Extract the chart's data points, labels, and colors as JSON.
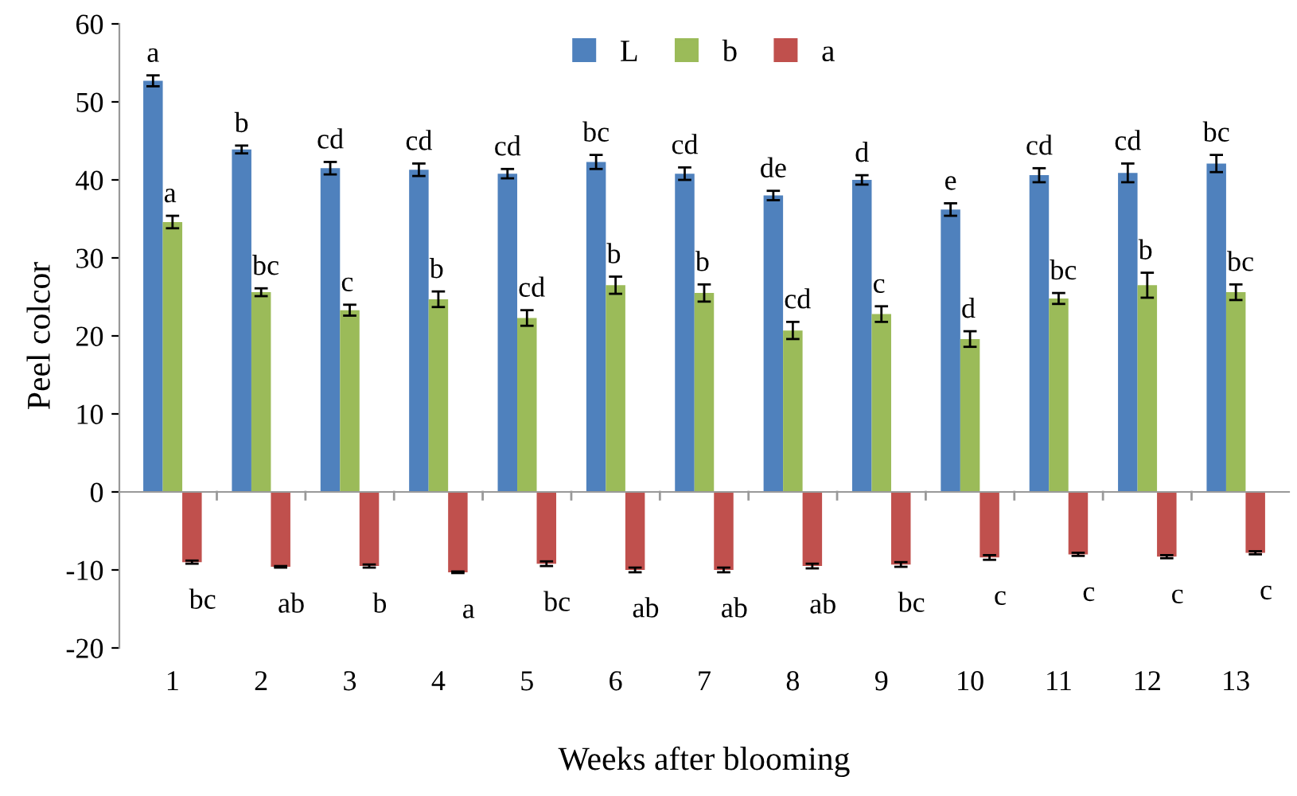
{
  "chart_data": {
    "type": "bar",
    "xlabel": "Weeks after blooming",
    "ylabel": "Peel colcor",
    "categories": [
      "1",
      "2",
      "3",
      "4",
      "5",
      "6",
      "7",
      "8",
      "9",
      "10",
      "11",
      "12",
      "13"
    ],
    "series": [
      {
        "name": "L",
        "color": "#4f81bd",
        "values": [
          52.7,
          43.9,
          41.5,
          41.3,
          40.8,
          42.3,
          40.8,
          38.0,
          40.0,
          36.2,
          40.6,
          40.9,
          42.1
        ],
        "errors": [
          0.7,
          0.5,
          0.8,
          0.8,
          0.6,
          0.9,
          0.8,
          0.6,
          0.6,
          0.8,
          0.9,
          1.2,
          1.1
        ],
        "value_labels": [
          "a",
          "b",
          "cd",
          "cd",
          "cd",
          "bc",
          "cd",
          "de",
          "d",
          "e",
          "cd",
          "cd",
          "bc"
        ]
      },
      {
        "name": "b",
        "color": "#9bbb59",
        "values": [
          34.6,
          25.6,
          23.3,
          24.7,
          22.3,
          26.5,
          25.5,
          20.7,
          22.8,
          19.6,
          24.8,
          26.5,
          25.6
        ],
        "errors": [
          0.8,
          0.5,
          0.7,
          1.0,
          1.0,
          1.1,
          1.1,
          1.1,
          1.0,
          1.0,
          0.7,
          1.6,
          1.0
        ],
        "value_labels": [
          "a",
          "bc",
          "c",
          "b",
          "cd",
          "b",
          "b",
          "cd",
          "c",
          "d",
          "bc",
          "b",
          "bc"
        ]
      },
      {
        "name": "a",
        "color": "#c0504d",
        "values": [
          -9.0,
          -9.6,
          -9.5,
          -10.3,
          -9.2,
          -10.0,
          -10.0,
          -9.5,
          -9.3,
          -8.4,
          -8.0,
          -8.3,
          -7.8
        ],
        "errors": [
          0.2,
          0.1,
          0.2,
          0.1,
          0.3,
          0.3,
          0.3,
          0.3,
          0.3,
          0.3,
          0.2,
          0.2,
          0.2
        ],
        "value_labels": [
          "bc",
          "ab",
          "b",
          "a",
          "bc",
          "ab",
          "ab",
          "ab",
          "bc",
          "c",
          "c",
          "c",
          "c"
        ]
      }
    ],
    "ylim": [
      -20,
      60
    ],
    "yticks": [
      -20,
      -10,
      0,
      10,
      20,
      30,
      40,
      50,
      60
    ],
    "legend": "top"
  }
}
